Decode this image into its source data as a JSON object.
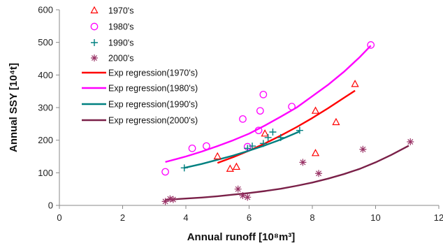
{
  "chart_data": {
    "type": "scatter",
    "title": "",
    "xlabel": "Annual runoff [10⁸m³]",
    "ylabel": "Annual SSY [10⁴t]",
    "xlim": [
      0,
      12
    ],
    "ylim": [
      0,
      600
    ],
    "xticks": [
      "0",
      "2",
      "4",
      "6",
      "8",
      "10",
      "12"
    ],
    "yticks": [
      "0",
      "100",
      "200",
      "300",
      "400",
      "500",
      "600"
    ],
    "grid": false,
    "legend_position": "top-left",
    "series": [
      {
        "name": "1970's",
        "kind": "scatter",
        "marker": "triangle",
        "color": "#ff0000",
        "points": [
          [
            5.0,
            150
          ],
          [
            5.4,
            112
          ],
          [
            5.6,
            118
          ],
          [
            6.5,
            220
          ],
          [
            8.1,
            290
          ],
          [
            8.1,
            160
          ],
          [
            8.75,
            255
          ],
          [
            9.35,
            372
          ]
        ]
      },
      {
        "name": "1980's",
        "kind": "scatter",
        "marker": "circle",
        "color": "#ff00ff",
        "points": [
          [
            3.35,
            103
          ],
          [
            4.2,
            175
          ],
          [
            4.65,
            182
          ],
          [
            5.8,
            265
          ],
          [
            5.95,
            180
          ],
          [
            6.3,
            230
          ],
          [
            6.35,
            290
          ],
          [
            6.45,
            340
          ],
          [
            7.35,
            303
          ],
          [
            9.85,
            492
          ]
        ]
      },
      {
        "name": "1990's",
        "kind": "scatter",
        "marker": "plus",
        "color": "#008080",
        "points": [
          [
            3.95,
            115
          ],
          [
            5.95,
            175
          ],
          [
            6.1,
            182
          ],
          [
            6.45,
            190
          ],
          [
            6.6,
            208
          ],
          [
            6.75,
            225
          ],
          [
            7.0,
            208
          ],
          [
            7.6,
            230
          ]
        ]
      },
      {
        "name": "2000's",
        "kind": "scatter",
        "marker": "asterisk",
        "color": "#993366",
        "points": [
          [
            3.35,
            12
          ],
          [
            3.5,
            20
          ],
          [
            3.6,
            18
          ],
          [
            5.65,
            50
          ],
          [
            5.8,
            30
          ],
          [
            5.95,
            25
          ],
          [
            7.7,
            132
          ],
          [
            8.2,
            98
          ],
          [
            9.6,
            172
          ],
          [
            11.1,
            195
          ]
        ]
      },
      {
        "name": "Exp regression(1970's)",
        "kind": "line",
        "color": "#ff0000",
        "x": [
          5.0,
          5.5,
          6.0,
          6.5,
          7.0,
          7.5,
          8.0,
          8.5,
          9.0,
          9.35
        ],
        "y": [
          130,
          148,
          168,
          190,
          214,
          240,
          268,
          298,
          330,
          352
        ]
      },
      {
        "name": "Exp regression(1980's)",
        "kind": "line",
        "color": "#ff00ff",
        "x": [
          3.35,
          4.0,
          4.5,
          5.0,
          5.5,
          6.0,
          6.5,
          7.0,
          7.5,
          8.0,
          8.5,
          9.0,
          9.5,
          9.85
        ],
        "y": [
          133,
          150,
          165,
          182,
          200,
          220,
          245,
          272,
          300,
          335,
          370,
          410,
          455,
          490
        ]
      },
      {
        "name": "Exp regression(1990's)",
        "kind": "line",
        "color": "#008080",
        "x": [
          3.95,
          4.5,
          5.0,
          5.5,
          6.0,
          6.5,
          7.0,
          7.6
        ],
        "y": [
          115,
          127,
          140,
          153,
          168,
          184,
          202,
          227
        ]
      },
      {
        "name": "Exp regression(2000's)",
        "kind": "line",
        "color": "#7a2048",
        "x": [
          3.35,
          4.0,
          4.5,
          5.0,
          5.5,
          6.0,
          6.5,
          7.0,
          7.5,
          8.0,
          8.5,
          9.0,
          9.5,
          10.0,
          10.5,
          11.05
        ],
        "y": [
          17,
          21,
          24,
          28,
          33,
          38,
          44,
          51,
          60,
          70,
          82,
          96,
          112,
          132,
          155,
          183
        ]
      }
    ]
  }
}
